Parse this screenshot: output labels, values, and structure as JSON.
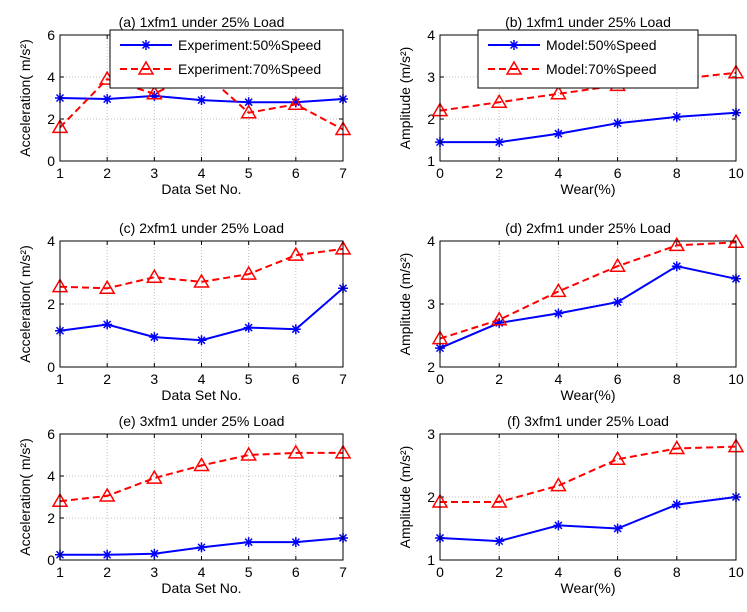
{
  "chart_data": [
    {
      "type": "line",
      "title": "(a) 1xfm1 under 25% Load",
      "xlabel": "Data Set No.",
      "ylabel": "Acceleration( m/s²)",
      "x": [
        1,
        2,
        3,
        4,
        5,
        6,
        7
      ],
      "xticks": [
        "1",
        "2",
        "3",
        "4",
        "5",
        "6",
        "7"
      ],
      "yticks": [
        "0",
        "2",
        "4",
        "6"
      ],
      "xlim": [
        1,
        7
      ],
      "ylim": [
        0,
        6
      ],
      "grid": true,
      "legend": "top-right",
      "series": [
        {
          "name": "Experiment:50%Speed",
          "values": [
            3.0,
            2.95,
            3.1,
            2.9,
            2.8,
            2.8,
            2.95
          ],
          "color": "#0000ff",
          "dash": "solid",
          "marker": "star"
        },
        {
          "name": "Experiment:70%Speed",
          "values": [
            1.6,
            3.9,
            3.2,
            4.3,
            2.3,
            2.7,
            1.5
          ],
          "color": "#ff0000",
          "dash": "dashed",
          "marker": "triangle"
        }
      ]
    },
    {
      "type": "line",
      "title": "(b) 1xfm1 under 25% Load",
      "xlabel": "Wear(%)",
      "ylabel": "Amplitude (m/s²)",
      "x": [
        0,
        2,
        4,
        6,
        8,
        10
      ],
      "xticks": [
        "0",
        "2",
        "4",
        "6",
        "8",
        "10"
      ],
      "yticks": [
        "1",
        "2",
        "3",
        "4"
      ],
      "xlim": [
        0,
        10
      ],
      "ylim": [
        1,
        4
      ],
      "grid": true,
      "legend": "top-right",
      "series": [
        {
          "name": "Model:50%Speed",
          "values": [
            1.45,
            1.45,
            1.65,
            1.9,
            2.05,
            2.15
          ],
          "color": "#0000ff",
          "dash": "solid",
          "marker": "star"
        },
        {
          "name": "Model:70%Speed",
          "values": [
            2.2,
            2.4,
            2.6,
            2.8,
            2.95,
            3.1
          ],
          "color": "#ff0000",
          "dash": "dashed",
          "marker": "triangle"
        }
      ]
    },
    {
      "type": "line",
      "title": "(c) 2xfm1 under 25% Load",
      "xlabel": "Data Set No.",
      "ylabel": "Acceleration( m/s²)",
      "x": [
        1,
        2,
        3,
        4,
        5,
        6,
        7
      ],
      "xticks": [
        "1",
        "2",
        "3",
        "4",
        "5",
        "6",
        "7"
      ],
      "yticks": [
        "0",
        "2",
        "4"
      ],
      "xlim": [
        1,
        7
      ],
      "ylim": [
        0,
        4
      ],
      "grid": true,
      "series": [
        {
          "values": [
            1.15,
            1.35,
            0.95,
            0.85,
            1.25,
            1.2,
            2.5
          ],
          "color": "#0000ff",
          "dash": "solid",
          "marker": "star"
        },
        {
          "values": [
            2.55,
            2.5,
            2.85,
            2.7,
            2.95,
            3.55,
            3.75
          ],
          "color": "#ff0000",
          "dash": "dashed",
          "marker": "triangle"
        }
      ]
    },
    {
      "type": "line",
      "title": "(d) 2xfm1 under 25% Load",
      "xlabel": "Wear(%)",
      "ylabel": "Amplitude (m/s²)",
      "x": [
        0,
        2,
        4,
        6,
        8,
        10
      ],
      "xticks": [
        "0",
        "2",
        "4",
        "6",
        "8",
        "10"
      ],
      "yticks": [
        "2",
        "3",
        "4"
      ],
      "xlim": [
        0,
        10
      ],
      "ylim": [
        2,
        4
      ],
      "grid": true,
      "series": [
        {
          "values": [
            2.3,
            2.7,
            2.85,
            3.03,
            3.6,
            3.4
          ],
          "color": "#0000ff",
          "dash": "solid",
          "marker": "star"
        },
        {
          "values": [
            2.45,
            2.75,
            3.2,
            3.6,
            3.93,
            3.98
          ],
          "color": "#ff0000",
          "dash": "dashed",
          "marker": "triangle"
        }
      ]
    },
    {
      "type": "line",
      "title": "(e) 3xfm1 under 25% Load",
      "xlabel": "Data Set No.",
      "ylabel": "Acceleration( m/s²)",
      "x": [
        1,
        2,
        3,
        4,
        5,
        6,
        7
      ],
      "xticks": [
        "1",
        "2",
        "3",
        "4",
        "5",
        "6",
        "7"
      ],
      "yticks": [
        "0",
        "2",
        "4",
        "6"
      ],
      "xlim": [
        1,
        7
      ],
      "ylim": [
        0,
        6
      ],
      "grid": true,
      "series": [
        {
          "values": [
            0.25,
            0.25,
            0.3,
            0.6,
            0.85,
            0.85,
            1.05
          ],
          "color": "#0000ff",
          "dash": "solid",
          "marker": "star"
        },
        {
          "values": [
            2.8,
            3.05,
            3.9,
            4.5,
            5.0,
            5.1,
            5.1
          ],
          "color": "#ff0000",
          "dash": "dashed",
          "marker": "triangle"
        }
      ]
    },
    {
      "type": "line",
      "title": "(f) 3xfm1 under 25% Load",
      "xlabel": "Wear(%)",
      "ylabel": "Amplitude (m/s²)",
      "x": [
        0,
        2,
        4,
        6,
        8,
        10
      ],
      "xticks": [
        "0",
        "2",
        "4",
        "6",
        "8",
        "10"
      ],
      "yticks": [
        "1",
        "2",
        "3"
      ],
      "xlim": [
        0,
        10
      ],
      "ylim": [
        1,
        3
      ],
      "grid": true,
      "series": [
        {
          "values": [
            1.35,
            1.3,
            1.55,
            1.5,
            1.88,
            2.0
          ],
          "color": "#0000ff",
          "dash": "solid",
          "marker": "star"
        },
        {
          "values": [
            1.92,
            1.92,
            2.18,
            2.6,
            2.77,
            2.8
          ],
          "color": "#ff0000",
          "dash": "dashed",
          "marker": "triangle"
        }
      ]
    }
  ]
}
